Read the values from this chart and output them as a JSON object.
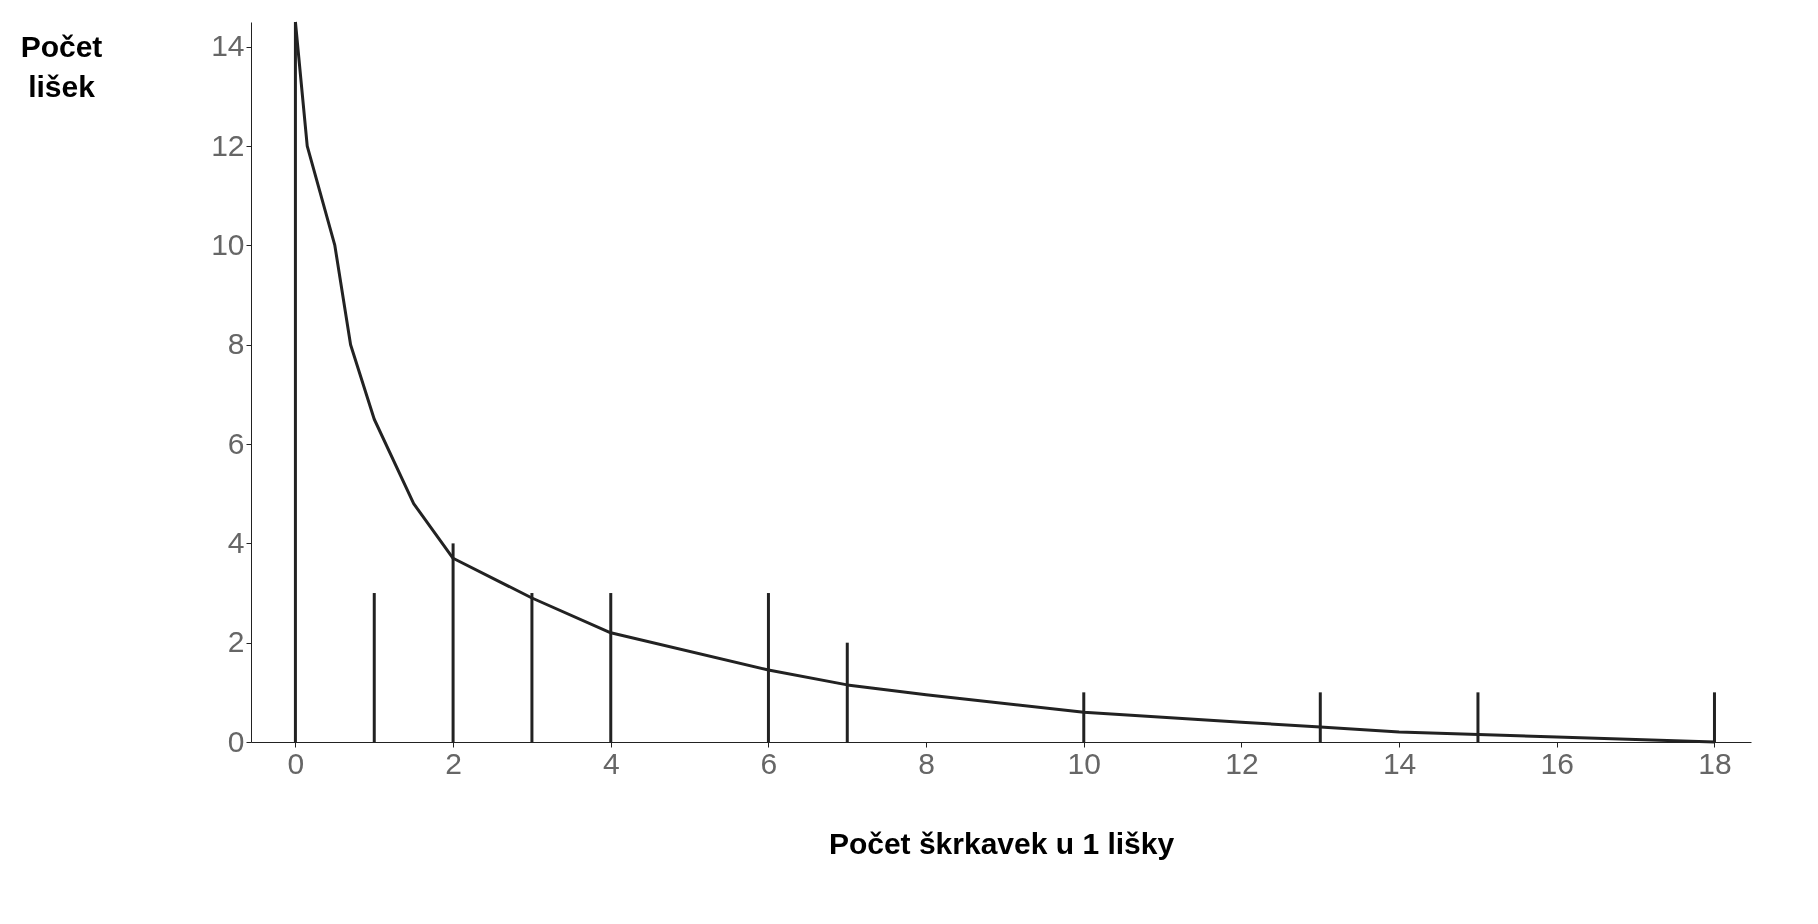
{
  "chart_data": {
    "type": "bar",
    "xlabel": "Počet škrkavek u 1 lišky",
    "ylabel": "Počet lišek",
    "xlim": [
      -0.5,
      18.4
    ],
    "xticks": [
      0,
      2,
      4,
      6,
      8,
      10,
      12,
      14,
      16,
      18
    ],
    "ylim": [
      0,
      14.5
    ],
    "yticks": [
      0,
      2,
      4,
      6,
      8,
      10,
      12,
      14
    ],
    "grid": false,
    "series": [
      {
        "color": "#222222",
        "x": [
          0,
          1,
          2,
          3,
          4,
          6,
          7,
          10,
          13,
          15,
          18
        ],
        "values": [
          14.5,
          3,
          4,
          3,
          3,
          3,
          2,
          1,
          1,
          1,
          1
        ]
      },
      {
        "type": "line",
        "color": "#222222",
        "x": [
          0,
          0.15,
          0.5,
          0.7,
          1,
          1.5,
          2,
          3,
          4,
          6,
          7,
          8,
          10,
          12,
          13,
          14,
          16,
          18
        ],
        "values": [
          14.5,
          12,
          10,
          8,
          6.5,
          4.8,
          3.7,
          2.9,
          2.2,
          1.45,
          1.15,
          0.95,
          0.6,
          0.4,
          0.3,
          0.2,
          0.1,
          0
        ]
      }
    ]
  }
}
